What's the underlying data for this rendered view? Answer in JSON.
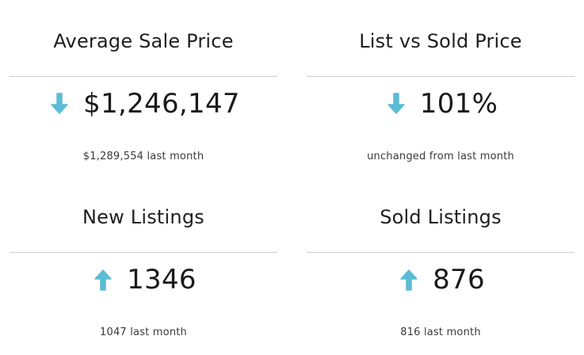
{
  "stats": [
    {
      "title": "Average Sale Price",
      "value": "$1,246,147",
      "trend": "down-arrow-icon",
      "comparison": "$1,289,554 last month"
    },
    {
      "title": "List vs Sold Price",
      "value": "101%",
      "trend": "down-arrow-icon",
      "comparison": "unchanged from last month"
    },
    {
      "title": "New Listings",
      "value": "1346",
      "trend": "up-arrow-icon",
      "comparison": "1047 last month"
    },
    {
      "title": "Sold Listings",
      "value": "876",
      "trend": "up-arrow-icon",
      "comparison": "816 last month"
    }
  ],
  "colors": {
    "arrow": "#5bbcd6",
    "divider": "#cfcfcf",
    "text": "#1a1a1a"
  }
}
